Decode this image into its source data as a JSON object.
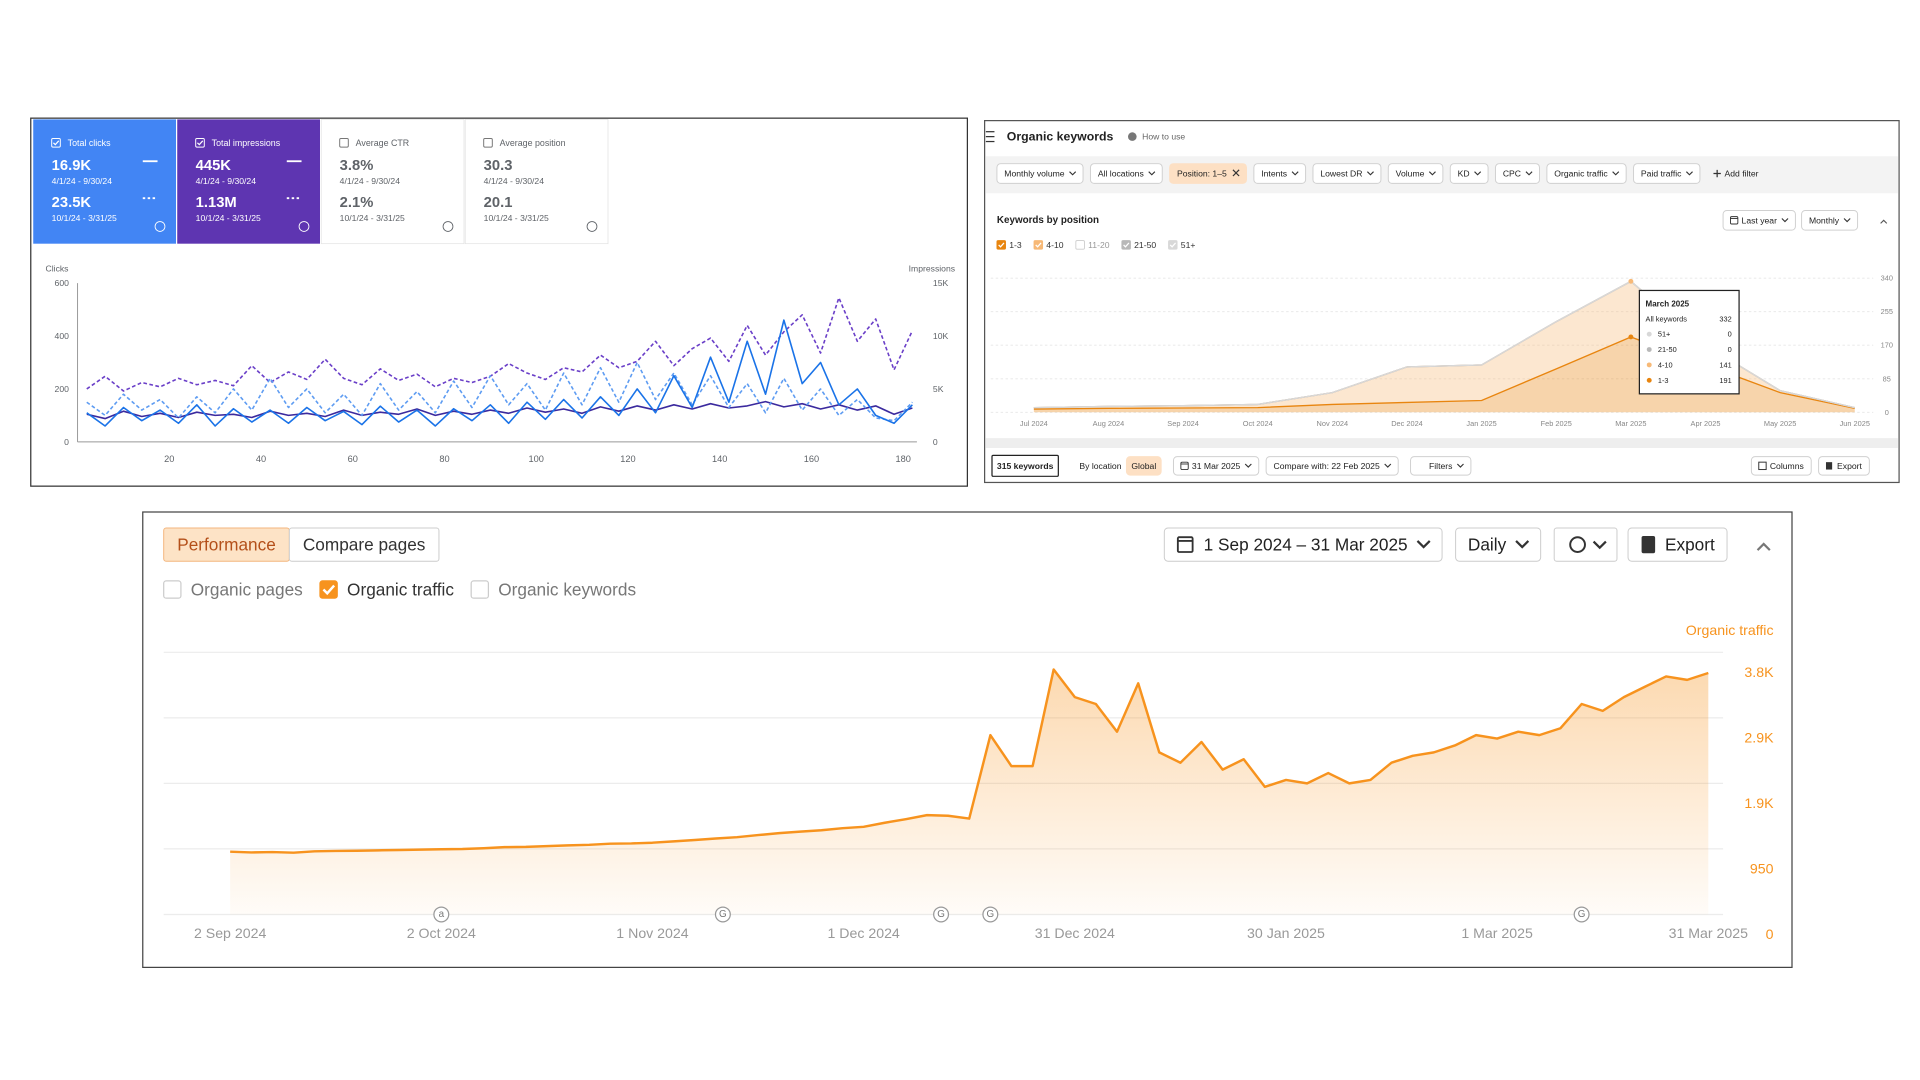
{
  "gsc": {
    "metrics": [
      {
        "label": "Total clicks",
        "selected": true,
        "color": "#4285f4",
        "value": "16.9K",
        "range": "4/1/24 - 9/30/24",
        "compare_value": "23.5K",
        "compare_range": "10/1/24 - 3/31/25"
      },
      {
        "label": "Total impressions",
        "selected": true,
        "color": "#5e35b1",
        "value": "445K",
        "range": "4/1/24 - 9/30/24",
        "compare_value": "1.13M",
        "compare_range": "10/1/24 - 3/31/25"
      },
      {
        "label": "Average CTR",
        "selected": false,
        "value": "3.8%",
        "range": "4/1/24 - 9/30/24",
        "compare_value": "2.1%",
        "compare_range": "10/1/24 - 3/31/25"
      },
      {
        "label": "Average position",
        "selected": false,
        "value": "30.3",
        "range": "4/1/24 - 9/30/24",
        "compare_value": "20.1",
        "compare_range": "10/1/24 - 3/31/25"
      }
    ]
  },
  "keywords": {
    "title": "Organic keywords",
    "help": "How to use",
    "filters": [
      {
        "label": "Monthly volume"
      },
      {
        "label": "All locations"
      },
      {
        "label": "Position: 1–5",
        "active": true
      },
      {
        "label": "Intents"
      },
      {
        "label": "Lowest DR"
      },
      {
        "label": "Volume"
      },
      {
        "label": "KD"
      },
      {
        "label": "CPC"
      },
      {
        "label": "Organic traffic"
      },
      {
        "label": "Paid traffic"
      }
    ],
    "add_filter": "Add filter",
    "section_title": "Keywords by position",
    "period": "Last year",
    "interval": "Monthly",
    "keyword_count": "315 keywords",
    "location_tabs": [
      {
        "label": "By location",
        "active": false
      },
      {
        "label": "Global",
        "active": true
      }
    ],
    "date": "31 Mar 2025",
    "compare": "Compare with: 22 Feb 2025",
    "filters_button": "Filters",
    "columns": "Columns",
    "export": "Export"
  },
  "performance": {
    "tabs": [
      {
        "label": "Performance",
        "active": true
      },
      {
        "label": "Compare pages",
        "active": false
      }
    ],
    "date_range": "1 Sep 2024 – 31 Mar 2025",
    "interval": "Daily",
    "export": "Export",
    "toggles": [
      {
        "label": "Organic pages",
        "checked": false
      },
      {
        "label": "Organic traffic",
        "checked": true
      },
      {
        "label": "Organic keywords",
        "checked": false
      }
    ]
  },
  "chart_data": [
    {
      "type": "line",
      "y_label": "Clicks",
      "y2_label": "Impressions",
      "x": [
        2,
        6,
        10,
        14,
        18,
        22,
        26,
        30,
        34,
        38,
        42,
        46,
        50,
        54,
        58,
        62,
        66,
        70,
        74,
        78,
        82,
        86,
        90,
        94,
        98,
        102,
        106,
        110,
        114,
        118,
        122,
        126,
        130,
        134,
        138,
        142,
        146,
        150,
        154,
        158,
        162,
        166,
        170,
        174,
        178,
        182
      ],
      "xlim": [
        0,
        183
      ],
      "xticks": [
        20,
        40,
        60,
        80,
        100,
        120,
        140,
        160,
        180
      ],
      "ylim": [
        0,
        600
      ],
      "yticks": [
        0,
        200,
        400,
        600
      ],
      "y2lim": [
        0,
        15000
      ],
      "y2ticks": [
        0,
        {
          "value": 5000,
          "label": "5K"
        },
        {
          "value": 10000,
          "label": "10K"
        },
        {
          "value": 15000,
          "label": "15K"
        }
      ],
      "series": [
        {
          "color": "#6a3fc8",
          "dashed": true,
          "axis": "y2",
          "values": [
            5000,
            6200,
            4800,
            5600,
            5200,
            6000,
            5400,
            5800,
            5300,
            7200,
            5600,
            6600,
            5900,
            7800,
            6000,
            5400,
            6900,
            5800,
            6400,
            5200,
            6000,
            5600,
            6200,
            7400,
            6500,
            5900,
            7000,
            6600,
            8200,
            7000,
            7600,
            9500,
            7200,
            8800,
            9800,
            7600,
            11000,
            8200,
            10400,
            12000,
            8400,
            13600,
            9500,
            11600,
            6800,
            10500
          ]
        },
        {
          "color": "#3b2a9e",
          "axis": "y2",
          "values": [
            2600,
            2200,
            2900,
            2400,
            2700,
            2300,
            2800,
            2500,
            2600,
            2300,
            2900,
            2500,
            2700,
            2400,
            3000,
            2500,
            2800,
            2600,
            3100,
            2500,
            2900,
            2600,
            3000,
            2700,
            3200,
            2800,
            3100,
            2700,
            3300,
            2900,
            3400,
            3000,
            3500,
            3100,
            3600,
            3200,
            3400,
            3800,
            3300,
            3600,
            3100,
            3500,
            3000,
            3400,
            2600,
            3200
          ]
        },
        {
          "color": "#5e9cf2",
          "dashed": true,
          "values": [
            150,
            100,
            180,
            120,
            160,
            90,
            170,
            110,
            200,
            120,
            240,
            130,
            200,
            110,
            180,
            100,
            220,
            120,
            190,
            110,
            230,
            130,
            250,
            140,
            220,
            120,
            260,
            140,
            280,
            150,
            300,
            160,
            260,
            140,
            250,
            130,
            220,
            110,
            240,
            120,
            200,
            100,
            160,
            90,
            80,
            150
          ]
        },
        {
          "color": "#1a73e8",
          "values": [
            110,
            60,
            130,
            80,
            120,
            70,
            140,
            60,
            125,
            75,
            120,
            70,
            130,
            80,
            115,
            65,
            135,
            75,
            120,
            60,
            125,
            80,
            140,
            70,
            150,
            85,
            160,
            90,
            170,
            100,
            200,
            110,
            250,
            130,
            320,
            150,
            380,
            180,
            460,
            220,
            300,
            140,
            200,
            100,
            70,
            140
          ]
        }
      ]
    },
    {
      "type": "area",
      "stacked": true,
      "grid": true,
      "categories": [
        "Jul 2024",
        "Aug 2024",
        "Sep 2024",
        "Oct 2024",
        "Nov 2024",
        "Dec 2024",
        "Jan 2025",
        "Feb 2025",
        "Mar 2025",
        "Apr 2025",
        "May 2025",
        "Jun 2025"
      ],
      "ylim": [
        0,
        340
      ],
      "yticks": [
        0,
        85,
        170,
        255,
        340
      ],
      "series": [
        {
          "name": "1-3",
          "color": "#e8850f",
          "checked": true,
          "values": [
            8,
            10,
            11,
            12,
            20,
            25,
            30,
            110,
            191,
            120,
            50,
            10
          ]
        },
        {
          "name": "4-10",
          "color": "#f7b977",
          "checked": true,
          "values": [
            4,
            5,
            6,
            8,
            30,
            90,
            90,
            120,
            141,
            50,
            5,
            2
          ]
        },
        {
          "name": "11-20",
          "color": "#cccccc",
          "checked": false,
          "values": [
            null,
            null,
            null,
            null,
            null,
            null,
            null,
            null,
            null,
            null,
            null,
            null
          ]
        },
        {
          "name": "21-50",
          "color": "#b8b8b8",
          "checked": true,
          "values": [
            0,
            0,
            0,
            0,
            0,
            0,
            0,
            0,
            0,
            0,
            0,
            0
          ]
        },
        {
          "name": "51+",
          "color": "#d8d8d8",
          "checked": true,
          "values": [
            0,
            0,
            0,
            0,
            0,
            0,
            0,
            0,
            0,
            0,
            0,
            0
          ]
        }
      ],
      "tooltip": {
        "at": "Mar 2025",
        "title": "March 2025",
        "total_label": "All keywords",
        "total": 332
      }
    },
    {
      "type": "area",
      "y_label": "Organic traffic",
      "color": "#f7931e",
      "grid": true,
      "x": [
        "2024-09-02",
        "2024-09-05",
        "2024-09-08",
        "2024-09-11",
        "2024-09-14",
        "2024-09-17",
        "2024-09-20",
        "2024-09-23",
        "2024-09-26",
        "2024-09-29",
        "2024-10-02",
        "2024-10-05",
        "2024-10-08",
        "2024-10-11",
        "2024-10-14",
        "2024-10-17",
        "2024-10-20",
        "2024-10-23",
        "2024-10-26",
        "2024-10-29",
        "2024-11-01",
        "2024-11-04",
        "2024-11-07",
        "2024-11-10",
        "2024-11-13",
        "2024-11-16",
        "2024-11-19",
        "2024-11-22",
        "2024-11-25",
        "2024-11-28",
        "2024-12-01",
        "2024-12-04",
        "2024-12-07",
        "2024-12-10",
        "2024-12-13",
        "2024-12-16",
        "2024-12-19",
        "2024-12-22",
        "2024-12-25",
        "2024-12-28",
        "2024-12-31",
        "2025-01-03",
        "2025-01-06",
        "2025-01-09",
        "2025-01-12",
        "2025-01-15",
        "2025-01-18",
        "2025-01-21",
        "2025-01-24",
        "2025-01-27",
        "2025-01-30",
        "2025-02-02",
        "2025-02-05",
        "2025-02-08",
        "2025-02-11",
        "2025-02-14",
        "2025-02-17",
        "2025-02-20",
        "2025-02-23",
        "2025-02-26",
        "2025-03-01",
        "2025-03-04",
        "2025-03-07",
        "2025-03-10",
        "2025-03-13",
        "2025-03-16",
        "2025-03-19",
        "2025-03-22",
        "2025-03-25",
        "2025-03-28",
        "2025-03-31"
      ],
      "values": [
        910,
        900,
        905,
        895,
        915,
        920,
        925,
        930,
        935,
        940,
        945,
        950,
        960,
        975,
        980,
        990,
        1000,
        1010,
        1025,
        1030,
        1040,
        1060,
        1080,
        1100,
        1120,
        1150,
        1180,
        1200,
        1220,
        1250,
        1270,
        1330,
        1380,
        1440,
        1430,
        1390,
        2600,
        2150,
        2150,
        3550,
        3150,
        3050,
        2650,
        3350,
        2350,
        2200,
        2500,
        2100,
        2250,
        1850,
        1950,
        1900,
        2050,
        1900,
        1950,
        2200,
        2300,
        2350,
        2450,
        2600,
        2550,
        2650,
        2600,
        2700,
        3050,
        2950,
        3150,
        3300,
        3450,
        3400,
        3500
      ],
      "xlim": [
        "2024-09-02",
        "2025-03-31"
      ],
      "xticks": [
        {
          "value": "2024-09-02",
          "label": "2 Sep 2024"
        },
        {
          "value": "2024-10-02",
          "label": "2 Oct 2024"
        },
        {
          "value": "2024-11-01",
          "label": "1 Nov 2024"
        },
        {
          "value": "2024-12-01",
          "label": "1 Dec 2024"
        },
        {
          "value": "2024-12-31",
          "label": "31 Dec 2024"
        },
        {
          "value": "2025-01-30",
          "label": "30 Jan 2025"
        },
        {
          "value": "2025-03-01",
          "label": "1 Mar 2025"
        },
        {
          "value": "2025-03-31",
          "label": "31 Mar 2025"
        }
      ],
      "ylim": [
        0,
        3800
      ],
      "yticks": [
        0,
        950,
        {
          "value": 1900,
          "label": "1.9K"
        },
        {
          "value": 2850,
          "label": "2.9K"
        },
        {
          "value": 3800,
          "label": "3.8K"
        }
      ],
      "annotations": [
        {
          "x": "2024-10-02",
          "label": "a"
        },
        {
          "x": "2024-11-11",
          "label": "G"
        },
        {
          "x": "2024-12-12",
          "label": "G"
        },
        {
          "x": "2024-12-19",
          "label": "G"
        },
        {
          "x": "2025-03-13",
          "label": "G"
        }
      ]
    }
  ]
}
